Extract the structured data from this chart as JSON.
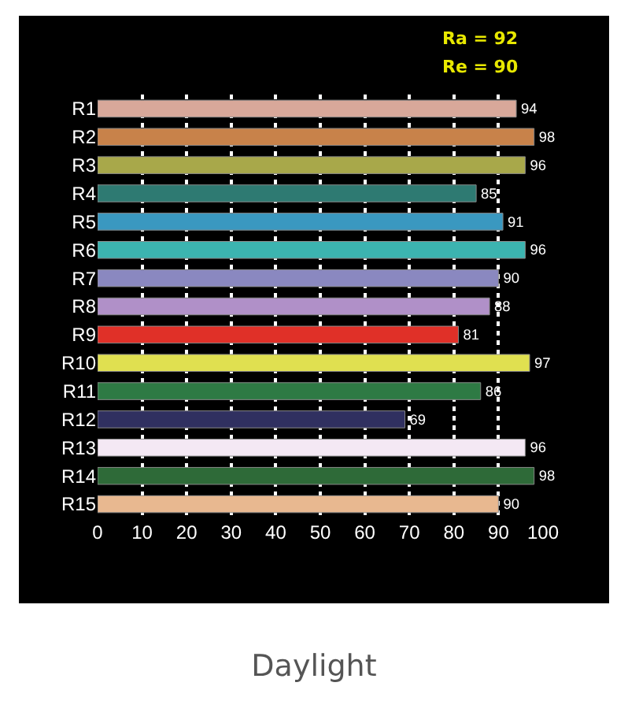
{
  "chart_data": {
    "type": "bar",
    "orientation": "horizontal",
    "title": "Daylight",
    "annotations": [
      "Ra = 92",
      "Re = 90"
    ],
    "categories": [
      "R1",
      "R2",
      "R3",
      "R4",
      "R5",
      "R6",
      "R7",
      "R8",
      "R9",
      "R10",
      "R11",
      "R12",
      "R13",
      "R14",
      "R15"
    ],
    "values": [
      94,
      98,
      96,
      85,
      91,
      96,
      90,
      88,
      81,
      97,
      86,
      69,
      96,
      98,
      90
    ],
    "colors": [
      "#d8a89a",
      "#c8824a",
      "#a8a84a",
      "#2e7a72",
      "#3a98c0",
      "#3cb4b0",
      "#8a88c0",
      "#b090c8",
      "#e03028",
      "#e0e050",
      "#2e7a44",
      "#303060",
      "#f4e8f4",
      "#2e6a38",
      "#e8b890"
    ],
    "xlim": [
      0,
      100
    ],
    "xticks": [
      0,
      10,
      20,
      30,
      40,
      50,
      60,
      70,
      80,
      90,
      100
    ],
    "grid": "x",
    "data_labels": true
  }
}
